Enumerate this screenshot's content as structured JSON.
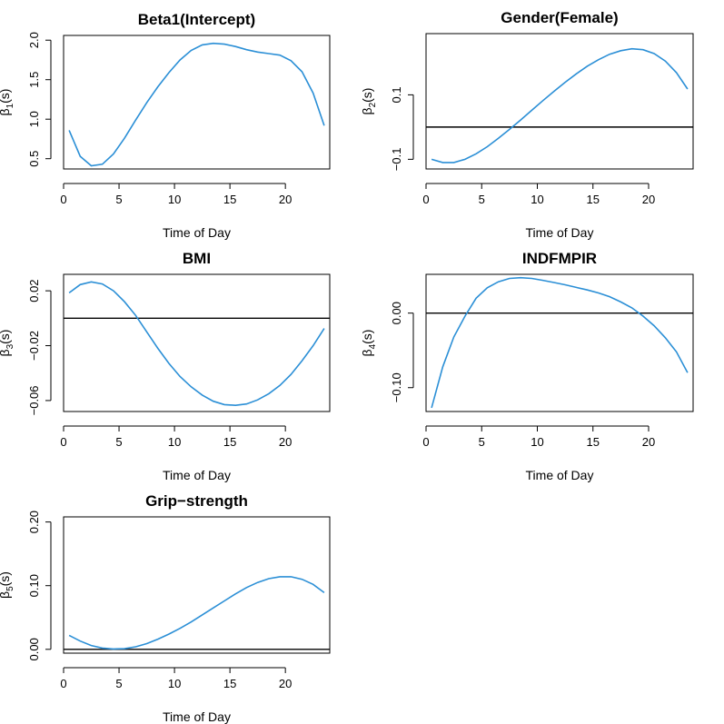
{
  "chart_data": [
    {
      "type": "line",
      "title": "Beta1(Intercept)",
      "xlabel": "Time of Day",
      "ylabel_symbol": "β",
      "ylabel_sub": "1",
      "ylabel_suffix": "(s)",
      "xlim": [
        0,
        24
      ],
      "ylim": [
        0.37,
        2.06
      ],
      "xticks": [
        0,
        5,
        10,
        15,
        20
      ],
      "xtick_labels": [
        "0",
        "5",
        "10",
        "15",
        "20"
      ],
      "yticks": [
        0.5,
        1.0,
        1.5,
        2.0
      ],
      "ytick_labels": [
        "0.5",
        "1.0",
        "1.5",
        "2.0"
      ],
      "ref_line": null,
      "x": [
        0.5,
        1.5,
        2.5,
        3.5,
        4.5,
        5.5,
        6.5,
        7.5,
        8.5,
        9.5,
        10.5,
        11.5,
        12.5,
        13.5,
        14.5,
        15.5,
        16.5,
        17.5,
        18.5,
        19.5,
        20.5,
        21.5,
        22.5,
        23.5
      ],
      "y": [
        0.86,
        0.53,
        0.41,
        0.43,
        0.56,
        0.76,
        0.99,
        1.21,
        1.41,
        1.59,
        1.75,
        1.87,
        1.94,
        1.96,
        1.95,
        1.92,
        1.88,
        1.85,
        1.83,
        1.81,
        1.74,
        1.6,
        1.33,
        0.92
      ]
    },
    {
      "type": "line",
      "title": "Gender(Female)",
      "xlabel": "Time of Day",
      "ylabel_symbol": "β",
      "ylabel_sub": "2",
      "ylabel_suffix": "(s)",
      "xlim": [
        0,
        24
      ],
      "ylim": [
        -0.13,
        0.29
      ],
      "xticks": [
        0,
        5,
        10,
        15,
        20
      ],
      "xtick_labels": [
        "0",
        "5",
        "10",
        "15",
        "20"
      ],
      "yticks": [
        -0.1,
        0.1
      ],
      "ytick_labels": [
        "-0.1",
        "0.1"
      ],
      "ref_line": 0,
      "x": [
        0.5,
        1.5,
        2.5,
        3.5,
        4.5,
        5.5,
        6.5,
        7.5,
        8.5,
        9.5,
        10.5,
        11.5,
        12.5,
        13.5,
        14.5,
        15.5,
        16.5,
        17.5,
        18.5,
        19.5,
        20.5,
        21.5,
        22.5,
        23.5
      ],
      "y": [
        -0.1,
        -0.11,
        -0.11,
        -0.1,
        -0.083,
        -0.061,
        -0.035,
        -0.007,
        0.022,
        0.052,
        0.082,
        0.111,
        0.139,
        0.165,
        0.189,
        0.209,
        0.226,
        0.237,
        0.243,
        0.24,
        0.228,
        0.205,
        0.169,
        0.118
      ]
    },
    {
      "type": "line",
      "title": "BMI",
      "xlabel": "Time of Day",
      "ylabel_symbol": "β",
      "ylabel_sub": "3",
      "ylabel_suffix": "(s)",
      "xlim": [
        0,
        24
      ],
      "ylim": [
        -0.068,
        0.032
      ],
      "xticks": [
        0,
        5,
        10,
        15,
        20
      ],
      "xtick_labels": [
        "0",
        "5",
        "10",
        "15",
        "20"
      ],
      "yticks": [
        -0.06,
        -0.02,
        0.02
      ],
      "ytick_labels": [
        "-0.06",
        "-0.02",
        "0.02"
      ],
      "ref_line": 0,
      "x": [
        0.5,
        1.5,
        2.5,
        3.5,
        4.5,
        5.5,
        6.5,
        7.5,
        8.5,
        9.5,
        10.5,
        11.5,
        12.5,
        13.5,
        14.5,
        15.5,
        16.5,
        17.5,
        18.5,
        19.5,
        20.5,
        21.5,
        22.5,
        23.5
      ],
      "y": [
        0.0185,
        0.0245,
        0.0265,
        0.025,
        0.02,
        0.012,
        0.002,
        -0.01,
        -0.022,
        -0.033,
        -0.0425,
        -0.05,
        -0.056,
        -0.0605,
        -0.063,
        -0.0635,
        -0.0625,
        -0.0595,
        -0.055,
        -0.049,
        -0.041,
        -0.031,
        -0.02,
        -0.0075
      ]
    },
    {
      "type": "line",
      "title": "INDFMPIR",
      "xlabel": "Time of Day",
      "ylabel_symbol": "β",
      "ylabel_sub": "4",
      "ylabel_suffix": "(s)",
      "xlim": [
        0,
        24
      ],
      "ylim": [
        -0.132,
        0.052
      ],
      "xticks": [
        0,
        5,
        10,
        15,
        20
      ],
      "xtick_labels": [
        "0",
        "5",
        "10",
        "15",
        "20"
      ],
      "yticks": [
        -0.1,
        0.0
      ],
      "ytick_labels": [
        "-0.10",
        "0.00"
      ],
      "ref_line": 0,
      "x": [
        0.5,
        1.5,
        2.5,
        3.5,
        4.5,
        5.5,
        6.5,
        7.5,
        8.5,
        9.5,
        10.5,
        11.5,
        12.5,
        13.5,
        14.5,
        15.5,
        16.5,
        17.5,
        18.5,
        19.5,
        20.5,
        21.5,
        22.5,
        23.5
      ],
      "y": [
        -0.127,
        -0.072,
        -0.032,
        -0.004,
        0.02,
        0.034,
        0.042,
        0.0465,
        0.0475,
        0.0465,
        0.044,
        0.041,
        0.038,
        0.0345,
        0.031,
        0.027,
        0.022,
        0.015,
        0.007,
        -0.004,
        -0.017,
        -0.033,
        -0.052,
        -0.08
      ]
    },
    {
      "type": "line",
      "title": "Grip−strength",
      "xlabel": "Time of Day",
      "ylabel_symbol": "β",
      "ylabel_sub": "5",
      "ylabel_suffix": "(s)",
      "xlim": [
        0,
        24
      ],
      "ylim": [
        -0.006,
        0.208
      ],
      "xticks": [
        0,
        5,
        10,
        15,
        20
      ],
      "xtick_labels": [
        "0",
        "5",
        "10",
        "15",
        "20"
      ],
      "yticks": [
        0.0,
        0.1,
        0.2
      ],
      "ytick_labels": [
        "0.00",
        "0.10",
        "0.20"
      ],
      "ref_line": 0,
      "x": [
        0.5,
        1.5,
        2.5,
        3.5,
        4.5,
        5.5,
        6.5,
        7.5,
        8.5,
        9.5,
        10.5,
        11.5,
        12.5,
        13.5,
        14.5,
        15.5,
        16.5,
        17.5,
        18.5,
        19.5,
        20.5,
        21.5,
        22.5,
        23.5
      ],
      "y": [
        0.022,
        0.013,
        0.006,
        0.002,
        0.0005,
        0.001,
        0.004,
        0.009,
        0.016,
        0.024,
        0.033,
        0.043,
        0.054,
        0.065,
        0.076,
        0.087,
        0.097,
        0.105,
        0.111,
        0.114,
        0.114,
        0.11,
        0.102,
        0.089
      ]
    }
  ]
}
